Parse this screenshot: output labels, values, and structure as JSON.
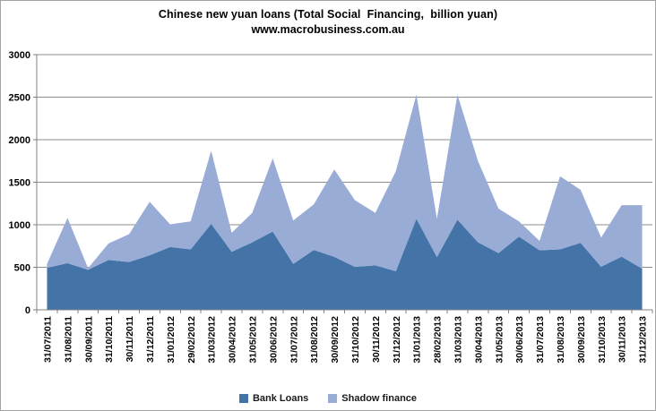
{
  "chart_data": {
    "type": "area",
    "stacked": true,
    "title": "Chinese new yuan loans (Total Social  Financing,  billion yuan)",
    "subtitle": "www.macrobusiness.com.au",
    "categories": [
      "31/07/2011",
      "31/08/2011",
      "30/09/2011",
      "31/10/2011",
      "30/11/2011",
      "31/12/2011",
      "31/01/2012",
      "29/02/2012",
      "31/03/2012",
      "30/04/2012",
      "31/05/2012",
      "30/06/2012",
      "31/07/2012",
      "31/08/2012",
      "30/09/2012",
      "31/10/2012",
      "30/11/2012",
      "31/12/2012",
      "31/01/2013",
      "28/02/2013",
      "31/03/2013",
      "30/04/2013",
      "31/05/2013",
      "30/06/2013",
      "31/07/2013",
      "31/08/2013",
      "30/09/2013",
      "31/10/2013",
      "30/11/2013",
      "31/12/2013"
    ],
    "series": [
      {
        "name": "Bank Loans",
        "color": "#4473A8",
        "values": [
          493,
          549,
          470,
          587,
          562,
          641,
          738,
          711,
          1010,
          682,
          793,
          920,
          540,
          704,
          623,
          505,
          523,
          454,
          1070,
          620,
          1060,
          793,
          667,
          861,
          700,
          711,
          787,
          506,
          625,
          483
        ]
      },
      {
        "name": "Shadow finance",
        "color": "#99ACD6",
        "values": [
          47,
          531,
          20,
          193,
          328,
          629,
          267,
          329,
          860,
          223,
          347,
          860,
          510,
          536,
          1027,
          785,
          617,
          1176,
          1460,
          450,
          1470,
          957,
          523,
          179,
          110,
          859,
          623,
          344,
          605,
          747
        ]
      }
    ],
    "ylim": [
      0,
      3000
    ],
    "ytick_step": 500,
    "yticks": [
      0,
      500,
      1000,
      1500,
      2000,
      2500,
      3000
    ],
    "grid": true,
    "legend_position": "bottom",
    "colors": {
      "gridline": "#8c8c8c",
      "axis": "#808080",
      "border": "#a3a3a3",
      "text": "#000000"
    }
  }
}
